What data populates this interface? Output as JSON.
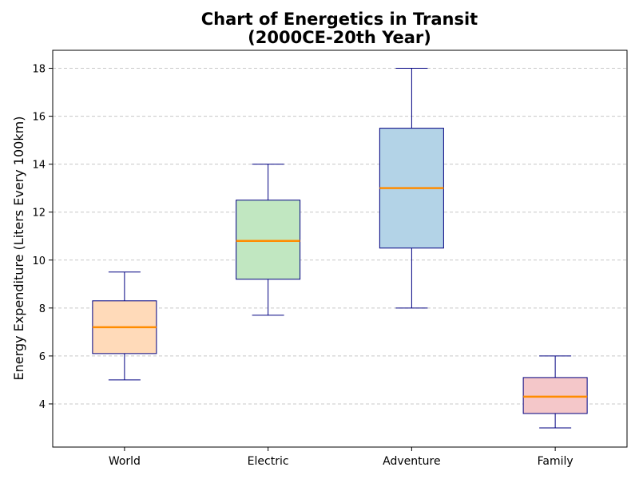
{
  "chart_data": {
    "type": "box",
    "title_lines": [
      "Chart of Energetics in Transit",
      "(2000CE-20th Year)"
    ],
    "xlabel": "",
    "ylabel": "Energy Expenditure (Liters Every 100km)",
    "ylim": [
      2.2,
      18.75
    ],
    "yticks": [
      4,
      6,
      8,
      10,
      12,
      14,
      16,
      18
    ],
    "grid": "y-dashed",
    "categories": [
      "World",
      "Electric",
      "Adventure",
      "Family"
    ],
    "boxes": [
      {
        "category": "World",
        "whisker_low": 5.0,
        "q1": 6.1,
        "median": 7.2,
        "q3": 8.3,
        "whisker_high": 9.5,
        "color": "#ffdab9"
      },
      {
        "category": "Electric",
        "whisker_low": 7.7,
        "q1": 9.2,
        "median": 10.8,
        "q3": 12.5,
        "whisker_high": 14.0,
        "color": "#c1e7c1"
      },
      {
        "category": "Adventure",
        "whisker_low": 8.0,
        "q1": 10.5,
        "median": 13.0,
        "q3": 15.5,
        "whisker_high": 18.0,
        "color": "#b3d3e7"
      },
      {
        "category": "Family",
        "whisker_low": 3.0,
        "q1": 3.6,
        "median": 4.3,
        "q3": 5.1,
        "whisker_high": 6.0,
        "color": "#f4c7c9"
      }
    ],
    "colors": {
      "box_edge": "#000080",
      "median_line": "#ff8c00",
      "grid": "#c8c8c8"
    }
  }
}
